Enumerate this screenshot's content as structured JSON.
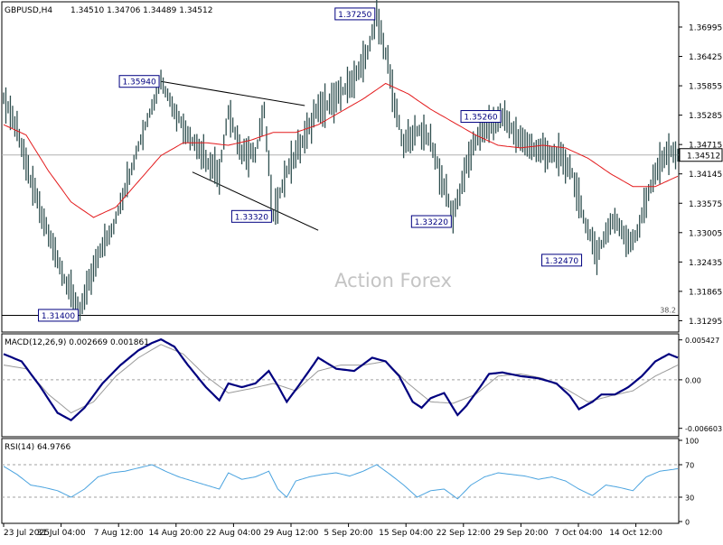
{
  "header": {
    "symbol_tf": "GBPUSD,H4",
    "ohlc": "1.34510 1.34706 1.34489 1.34512"
  },
  "watermark": "Action Forex",
  "colors": {
    "price": "#2f4f4f",
    "ma": "#e31a1c",
    "macd_main": "#00007f",
    "macd_signal": "#9a9a9a",
    "rsi": "#4aa3df",
    "label_border": "#000080",
    "crosshair": "#b0b0b0",
    "grid_dash": "#a0a0a0"
  },
  "chart_data": [
    {
      "type": "line",
      "panel": "price",
      "title": "GBPUSD,H4",
      "x_tick_labels": [
        "23 Jul 2025",
        "31 Jul 04:00",
        "7 Aug 12:00",
        "14 Aug 20:00",
        "22 Aug 04:00",
        "29 Aug 12:00",
        "5 Sep 20:00",
        "15 Sep 04:00",
        "22 Sep 12:00",
        "29 Sep 20:00",
        "7 Oct 04:00",
        "14 Oct 12:00"
      ],
      "y_tick_labels": [
        "1.36995",
        "1.36425",
        "1.35855",
        "1.35285",
        "1.34715",
        "1.34145",
        "1.33575",
        "1.33005",
        "1.32435",
        "1.31865",
        "1.31295"
      ],
      "ylim": [
        1.3111,
        1.3745
      ],
      "current_price_label": "1.34512",
      "current_price": 1.34512,
      "fib_level": {
        "label": "38.2",
        "value": 1.314
      },
      "series": [
        {
          "name": "close",
          "x_index": [
            0,
            6,
            12,
            20,
            28,
            34,
            42,
            48,
            58,
            64,
            70,
            76,
            82,
            90,
            96,
            100,
            106,
            112,
            116,
            120,
            126,
            132,
            140,
            148,
            156,
            162,
            166,
            170,
            174,
            178,
            184,
            190,
            200,
            206,
            210,
            214,
            222,
            230,
            238,
            246,
            252,
            258,
            264,
            272,
            278,
            282,
            286,
            290,
            296,
            300
          ],
          "values": [
            1.3565,
            1.35,
            1.34,
            1.33,
            1.32,
            1.3145,
            1.326,
            1.33,
            1.344,
            1.352,
            1.3594,
            1.354,
            1.349,
            1.344,
            1.342,
            1.353,
            1.346,
            1.345,
            1.354,
            1.3332,
            1.342,
            1.347,
            1.354,
            1.356,
            1.36,
            1.365,
            1.3725,
            1.365,
            1.355,
            1.347,
            1.35,
            1.348,
            1.333,
            1.343,
            1.348,
            1.35,
            1.3526,
            1.348,
            1.346,
            1.345,
            1.343,
            1.333,
            1.326,
            1.333,
            1.328,
            1.33,
            1.336,
            1.342,
            1.346,
            1.3451
          ]
        },
        {
          "name": "MA",
          "x_index": [
            0,
            10,
            20,
            30,
            40,
            50,
            60,
            70,
            80,
            90,
            100,
            110,
            120,
            130,
            140,
            150,
            160,
            170,
            180,
            190,
            200,
            210,
            220,
            230,
            240,
            250,
            260,
            270,
            280,
            290,
            300
          ],
          "values": [
            1.351,
            1.349,
            1.342,
            1.336,
            1.333,
            1.335,
            1.34,
            1.345,
            1.3475,
            1.3475,
            1.347,
            1.348,
            1.3495,
            1.3495,
            1.351,
            1.3535,
            1.356,
            1.359,
            1.357,
            1.354,
            1.3515,
            1.349,
            1.347,
            1.3465,
            1.347,
            1.3465,
            1.3445,
            1.3415,
            1.339,
            1.339,
            1.341
          ]
        }
      ],
      "annotations": [
        {
          "text": "1.35940",
          "x_index": 70,
          "value": 1.3594
        },
        {
          "text": "1.37250",
          "x_index": 166,
          "value": 1.3725
        },
        {
          "text": "1.35260",
          "x_index": 222,
          "value": 1.3526
        },
        {
          "text": "1.33320",
          "x_index": 120,
          "value": 1.3332
        },
        {
          "text": "1.33220",
          "x_index": 200,
          "value": 1.3322
        },
        {
          "text": "1.32470",
          "x_index": 258,
          "value": 1.3247
        },
        {
          "text": "1.31400",
          "x_index": 34,
          "value": 1.314
        }
      ],
      "trendlines": [
        {
          "from": {
            "x_index": 70,
            "value": 1.3594
          },
          "to": {
            "x_index": 134,
            "value": 1.3547
          }
        },
        {
          "from": {
            "x_index": 84,
            "value": 1.3418
          },
          "to": {
            "x_index": 140,
            "value": 1.3305
          }
        }
      ]
    },
    {
      "type": "line",
      "panel": "macd",
      "title": "MACD(12,26,9) 0.002669 0.001861",
      "y_tick_labels": [
        "0.005427",
        "0.00",
        "-0.006603"
      ],
      "ylim": [
        -0.0075,
        0.006
      ],
      "zero_line": 0.0,
      "series": [
        {
          "name": "main",
          "x_index": [
            0,
            8,
            16,
            24,
            30,
            36,
            44,
            52,
            60,
            66,
            70,
            76,
            82,
            90,
            96,
            100,
            106,
            112,
            118,
            122,
            126,
            132,
            140,
            148,
            156,
            164,
            170,
            176,
            182,
            186,
            190,
            196,
            202,
            206,
            212,
            216,
            222,
            230,
            238,
            246,
            252,
            256,
            262,
            266,
            272,
            278,
            284,
            290,
            296,
            300
          ],
          "values": [
            0.0035,
            0.0025,
            -0.0008,
            -0.0045,
            -0.0055,
            -0.0038,
            -0.0005,
            0.002,
            0.004,
            0.005,
            0.0055,
            0.0045,
            0.002,
            -0.001,
            -0.0028,
            -0.0005,
            -0.001,
            -0.0005,
            0.0012,
            -0.0008,
            -0.003,
            -0.0005,
            0.003,
            0.0015,
            0.0012,
            0.003,
            0.0025,
            0.0005,
            -0.003,
            -0.0038,
            -0.0025,
            -0.0018,
            -0.0048,
            -0.0035,
            -0.001,
            0.0008,
            0.001,
            0.0005,
            0.0002,
            -0.0005,
            -0.0022,
            -0.004,
            -0.003,
            -0.002,
            -0.002,
            -0.001,
            0.0005,
            0.0025,
            0.0035,
            0.003
          ]
        },
        {
          "name": "signal",
          "x_index": [
            0,
            10,
            20,
            30,
            40,
            50,
            60,
            70,
            80,
            90,
            100,
            110,
            120,
            130,
            140,
            150,
            160,
            170,
            180,
            190,
            200,
            210,
            220,
            230,
            240,
            250,
            260,
            270,
            280,
            290,
            300
          ],
          "values": [
            0.002,
            0.0015,
            -0.002,
            -0.0045,
            -0.003,
            0.0005,
            0.003,
            0.0048,
            0.0035,
            0.0005,
            -0.0018,
            -0.0012,
            -0.0005,
            -0.0015,
            0.0012,
            0.002,
            0.002,
            0.0025,
            -0.0005,
            -0.003,
            -0.0032,
            -0.002,
            0.0005,
            0.0008,
            0.0002,
            -0.0012,
            -0.003,
            -0.0022,
            -0.0015,
            0.0005,
            0.002
          ]
        }
      ]
    },
    {
      "type": "line",
      "panel": "rsi",
      "title": "RSI(14) 64.9766",
      "y_tick_labels": [
        "100",
        "70",
        "30",
        "0"
      ],
      "ylim": [
        0,
        100
      ],
      "levels": [
        70,
        30
      ],
      "series": [
        {
          "name": "RSI(14)",
          "x_index": [
            0,
            6,
            12,
            18,
            24,
            30,
            36,
            42,
            48,
            54,
            60,
            66,
            72,
            78,
            84,
            90,
            96,
            100,
            106,
            112,
            118,
            122,
            126,
            130,
            136,
            142,
            148,
            154,
            160,
            166,
            172,
            178,
            184,
            190,
            196,
            202,
            208,
            214,
            220,
            226,
            232,
            238,
            244,
            250,
            256,
            262,
            268,
            274,
            280,
            286,
            292,
            300
          ],
          "values": [
            68,
            58,
            45,
            42,
            38,
            30,
            40,
            55,
            60,
            62,
            66,
            70,
            62,
            55,
            50,
            45,
            40,
            60,
            52,
            55,
            62,
            40,
            30,
            50,
            55,
            58,
            60,
            56,
            62,
            70,
            58,
            45,
            30,
            38,
            40,
            28,
            45,
            55,
            60,
            58,
            56,
            52,
            55,
            50,
            40,
            32,
            45,
            42,
            38,
            55,
            62,
            65
          ]
        }
      ]
    }
  ]
}
